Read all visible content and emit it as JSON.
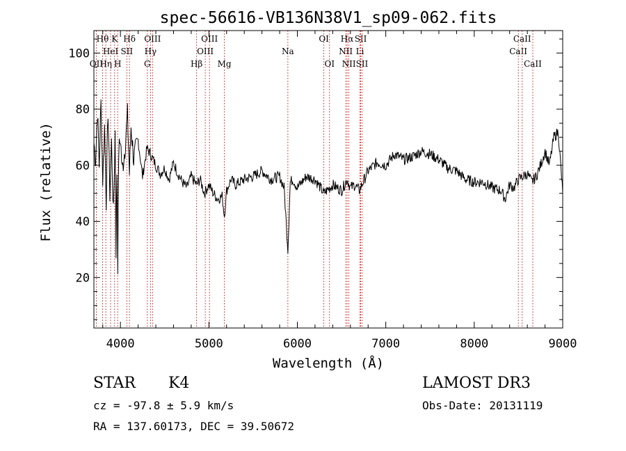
{
  "chart_data": {
    "type": "line",
    "title": "spec-56616-VB136N38V1_sp09-062.fits",
    "xlabel": "Wavelength (Å)",
    "ylabel": "Flux (relative)",
    "xlim": [
      3700,
      9000
    ],
    "ylim": [
      2,
      108
    ],
    "xticks": [
      4000,
      5000,
      6000,
      7000,
      8000,
      9000
    ],
    "yticks": [
      20,
      40,
      60,
      80,
      100
    ],
    "series": [
      {
        "name": "spectrum",
        "x": [
          3700,
          3720,
          3740,
          3760,
          3780,
          3800,
          3820,
          3840,
          3860,
          3880,
          3900,
          3920,
          3940,
          3950,
          3960,
          3970,
          3980,
          4000,
          4020,
          4050,
          4080,
          4102,
          4120,
          4150,
          4200,
          4250,
          4300,
          4340,
          4400,
          4450,
          4500,
          4550,
          4600,
          4650,
          4700,
          4750,
          4800,
          4861,
          4900,
          4950,
          5000,
          5050,
          5100,
          5150,
          5175,
          5200,
          5250,
          5300,
          5400,
          5500,
          5600,
          5700,
          5800,
          5850,
          5893,
          5920,
          5950,
          6000,
          6100,
          6200,
          6300,
          6400,
          6500,
          6563,
          6600,
          6650,
          6700,
          6800,
          6900,
          7000,
          7100,
          7200,
          7300,
          7400,
          7500,
          7600,
          7700,
          7800,
          7900,
          8000,
          8100,
          8200,
          8300,
          8350,
          8400,
          8450,
          8500,
          8550,
          8600,
          8650,
          8700,
          8750,
          8800,
          8850,
          8900,
          8950,
          9000
        ],
        "values": [
          68,
          62,
          80,
          60,
          82,
          55,
          74,
          48,
          80,
          50,
          68,
          42,
          72,
          30,
          58,
          25,
          64,
          70,
          58,
          66,
          78,
          57,
          74,
          62,
          69,
          56,
          66,
          64,
          60,
          57,
          59,
          55,
          61,
          57,
          54,
          52,
          56,
          53,
          55,
          50,
          53,
          50,
          48,
          49,
          42,
          51,
          55,
          53,
          55,
          56,
          58,
          55,
          56,
          52,
          30,
          54,
          55,
          52,
          56,
          55,
          50,
          53,
          51,
          55,
          52,
          53,
          51,
          58,
          61,
          60,
          64,
          62,
          63,
          65,
          64,
          62,
          59,
          58,
          55,
          54,
          54,
          52,
          51,
          48,
          53,
          52,
          55,
          56,
          57,
          54,
          56,
          60,
          65,
          60,
          70,
          72,
          50
        ]
      }
    ],
    "line_markers": [
      {
        "label": "OII",
        "wave": 3727,
        "row": 3
      },
      {
        "label": "Hθ",
        "wave": 3798,
        "row": 1
      },
      {
        "label": "Hη",
        "wave": 3835,
        "row": 3
      },
      {
        "label": "HeI",
        "wave": 3889,
        "row": 2
      },
      {
        "label": "K",
        "wave": 3934,
        "row": 1
      },
      {
        "label": "H",
        "wave": 3969,
        "row": 3
      },
      {
        "label": "SII",
        "wave": 4072,
        "row": 2
      },
      {
        "label": "Hδ",
        "wave": 4102,
        "row": 1
      },
      {
        "label": "G",
        "wave": 4304,
        "row": 3
      },
      {
        "label": "Hγ",
        "wave": 4340,
        "row": 2
      },
      {
        "label": "OIII",
        "wave": 4363,
        "row": 1
      },
      {
        "label": "Hβ",
        "wave": 4861,
        "row": 3
      },
      {
        "label": "OIII",
        "wave": 4959,
        "row": 2
      },
      {
        "label": "OIII",
        "wave": 5007,
        "row": 1
      },
      {
        "label": "Mg",
        "wave": 5175,
        "row": 3
      },
      {
        "label": "Na",
        "wave": 5893,
        "row": 2
      },
      {
        "label": "OI",
        "wave": 6300,
        "row": 1
      },
      {
        "label": "OI",
        "wave": 6364,
        "row": 3
      },
      {
        "label": "NII",
        "wave": 6548,
        "row": 2
      },
      {
        "label": "Hα",
        "wave": 6563,
        "row": 1
      },
      {
        "label": "NII",
        "wave": 6583,
        "row": 3
      },
      {
        "label": "Li",
        "wave": 6708,
        "row": 2
      },
      {
        "label": "SII",
        "wave": 6716,
        "row": 1
      },
      {
        "label": "SII",
        "wave": 6731,
        "row": 3
      },
      {
        "label": "CaII",
        "wave": 8498,
        "row": 2
      },
      {
        "label": "CaII",
        "wave": 8542,
        "row": 1
      },
      {
        "label": "CaII",
        "wave": 8662,
        "row": 3
      }
    ]
  },
  "info": {
    "class": "STAR",
    "subclass": "K4",
    "survey": "LAMOST DR3",
    "cz": "cz = -97.8 ± 5.9 km/s",
    "obs_date": "Obs-Date: 20131119",
    "coords": "RA = 137.60173, DEC =  39.50672"
  },
  "colors": {
    "marker": "#cc2222",
    "spectrum": "#000000"
  }
}
